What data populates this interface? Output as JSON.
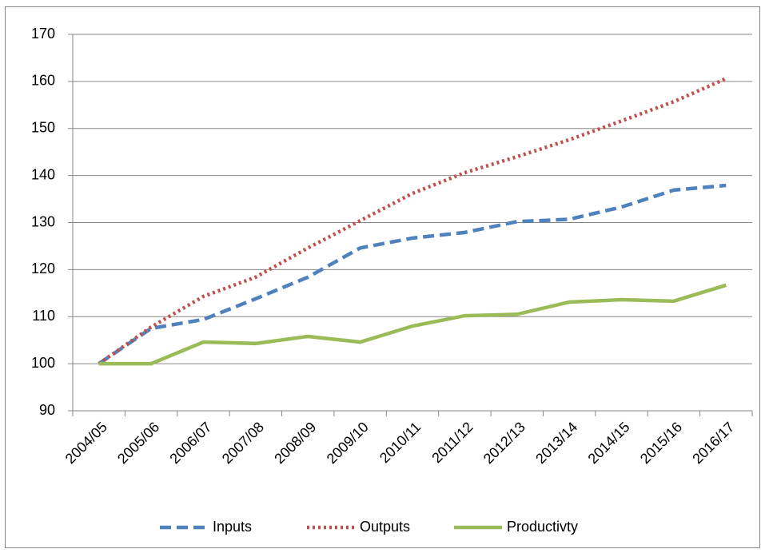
{
  "chart_data": {
    "type": "line",
    "categories": [
      "2004/05",
      "2005/06",
      "2006/07",
      "2007/08",
      "2008/09",
      "2009/10",
      "2010/11",
      "2011/12",
      "2012/13",
      "2013/14",
      "2014/15",
      "2015/16",
      "2016/17"
    ],
    "series": [
      {
        "name": "Inputs",
        "color": "#4f81bd",
        "style": "dashed",
        "values": [
          100,
          107.5,
          109.4,
          113.8,
          118.4,
          124.6,
          126.7,
          127.9,
          130.2,
          130.7,
          133.3,
          136.9,
          137.9
        ]
      },
      {
        "name": "Outputs",
        "color": "#c0504d",
        "style": "dotted",
        "values": [
          100,
          107.8,
          114.3,
          118.4,
          124.6,
          130.4,
          136.2,
          140.6,
          144,
          147.6,
          151.6,
          155.7,
          160.6
        ]
      },
      {
        "name": "Productivty",
        "color": "#9bbb59",
        "style": "solid",
        "values": [
          100,
          100,
          104.6,
          104.3,
          105.8,
          104.6,
          108,
          110.2,
          110.5,
          113.1,
          113.6,
          113.3,
          116.7
        ]
      }
    ],
    "ylim": [
      90,
      170
    ],
    "yticks": [
      90,
      100,
      110,
      120,
      130,
      140,
      150,
      160,
      170
    ],
    "grid": true,
    "legend": "bottom"
  }
}
